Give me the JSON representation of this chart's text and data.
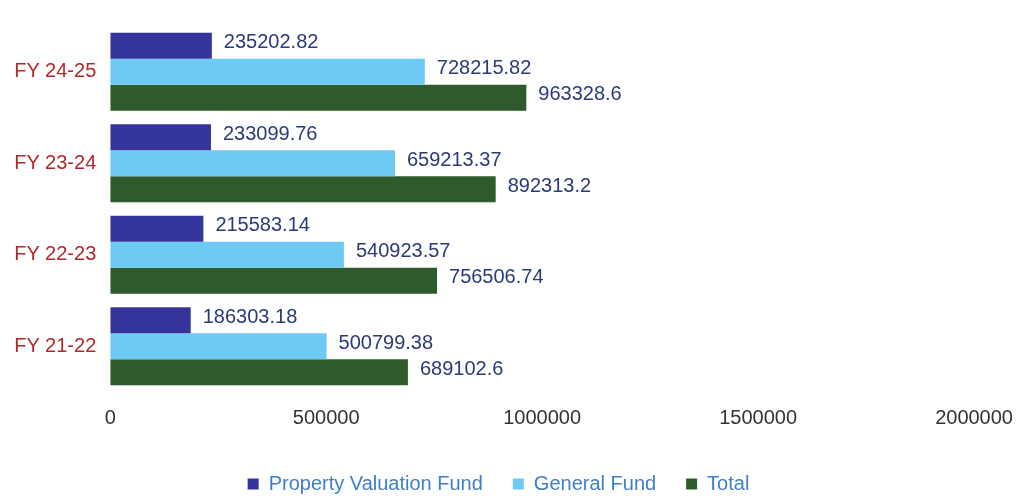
{
  "chart_data": {
    "type": "bar",
    "orientation": "horizontal",
    "categories": [
      "FY 24-25",
      "FY 23-24",
      "FY 22-23",
      "FY 21-22"
    ],
    "series": [
      {
        "name": "Property Valuation Fund",
        "color": "#34349a",
        "values": [
          235202.82,
          233099.76,
          215583.14,
          186303.18
        ]
      },
      {
        "name": "General Fund",
        "color": "#6ccaf4",
        "values": [
          728215.82,
          659213.37,
          540923.57,
          500799.38
        ]
      },
      {
        "name": "Total",
        "color": "#2f5a2c",
        "values": [
          963328.6,
          892313.2,
          756506.74,
          689102.6
        ]
      }
    ],
    "xlim": [
      0,
      2000000
    ],
    "xticks": [
      0,
      500000,
      1000000,
      1500000,
      2000000
    ],
    "grid": false,
    "legend": "bottom",
    "data_labels": true
  }
}
